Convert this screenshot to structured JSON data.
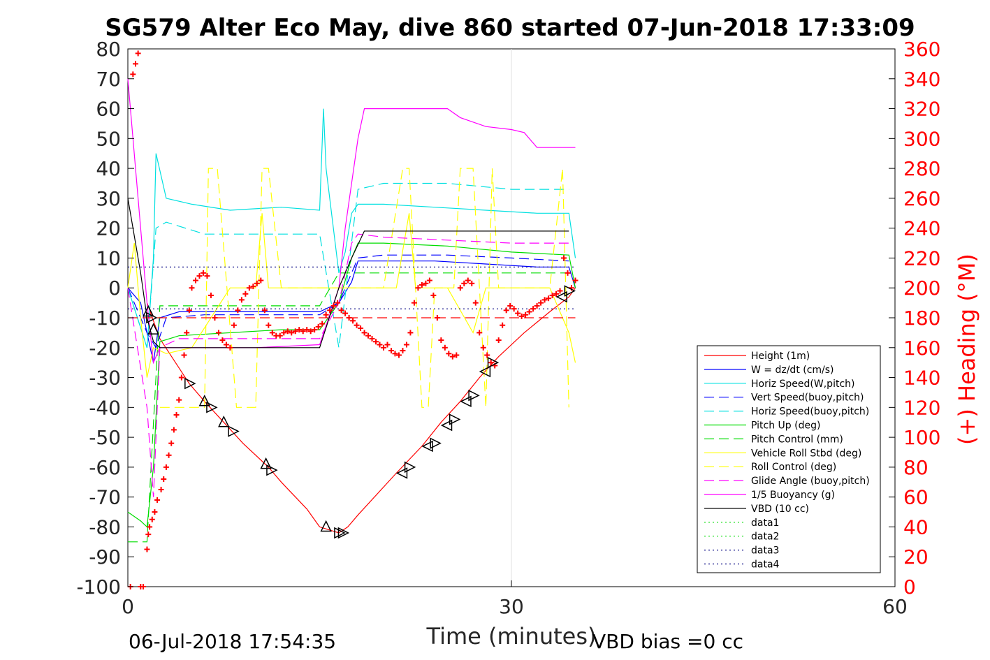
{
  "chart_data": {
    "type": "line",
    "title": "SG579 Alter Eco May, dive 860 started 07-Jun-2018 17:33:09",
    "xlabel": "Time (minutes)",
    "ylabel_right": "(+) Heading (°M)",
    "xlim": [
      0,
      60
    ],
    "ylim": [
      -100,
      80
    ],
    "ylim_right": [
      0,
      360
    ],
    "x_ticks": [
      "0",
      "30",
      "60"
    ],
    "y_ticks": [
      "80",
      "70",
      "60",
      "50",
      "40",
      "30",
      "20",
      "10",
      "0",
      "-10",
      "-20",
      "-30",
      "-40",
      "-50",
      "-60",
      "-70",
      "-80",
      "-90",
      "-100"
    ],
    "y_ticks_right": [
      "360",
      "340",
      "320",
      "300",
      "280",
      "260",
      "240",
      "220",
      "200",
      "180",
      "160",
      "140",
      "120",
      "100",
      "80",
      "60",
      "40",
      "20",
      "0"
    ],
    "grid": "x only at 30",
    "legend_position": "lower-right",
    "footer_left": "06-Jul-2018 17:54:35",
    "footer_right": "VBD bias =0 cc",
    "series": [
      {
        "name": "Height (1m)",
        "color": "#ff0000",
        "style": "solid",
        "x": [
          1.5,
          2.5,
          4.8,
          6,
          7.5,
          9,
          11,
          12,
          14,
          15,
          16.5,
          17.2,
          18,
          21,
          23,
          24.5,
          26,
          27.5,
          29,
          31,
          33,
          34.5,
          35
        ],
        "y": [
          -5,
          -17,
          -32,
          -38,
          -45,
          -52,
          -60,
          -65,
          -74,
          -80,
          -82,
          -80,
          -76,
          -62,
          -53,
          -45,
          -38,
          -30,
          -23,
          -15,
          -8,
          -3,
          0
        ]
      },
      {
        "name": "W = dz/dt (cm/s)",
        "color": "#0000ff",
        "style": "solid",
        "x": [
          0,
          1,
          1.5,
          2,
          2.5,
          4,
          8,
          12,
          15,
          16.5,
          17.5,
          18,
          20,
          24,
          28,
          32,
          34.5,
          35
        ],
        "y": [
          0,
          -5,
          -15,
          -25,
          -10,
          -8,
          -8,
          -8,
          -8,
          -5,
          2,
          9,
          9,
          9,
          8,
          7,
          7,
          0
        ]
      },
      {
        "name": "Horiz Speed(W,pitch)",
        "color": "#00e0e0",
        "style": "solid",
        "x": [
          0,
          1.5,
          2,
          2.2,
          3,
          5,
          8,
          12,
          15,
          15.3,
          15.5,
          16.5,
          17,
          17.5,
          18,
          20,
          24,
          28,
          32,
          34.5,
          35
        ],
        "y": [
          0,
          -20,
          10,
          45,
          30,
          28,
          26,
          27,
          26,
          60,
          40,
          5,
          12,
          25,
          28,
          28,
          27,
          26,
          25,
          25,
          10
        ]
      },
      {
        "name": "Vert Speed(buoy,pitch)",
        "color": "#0000ff",
        "style": "dashed",
        "x": [
          0,
          1.5,
          2.2,
          3,
          6,
          12,
          15,
          16.5,
          18,
          20,
          25,
          30,
          34.5
        ],
        "y": [
          0,
          -15,
          -20,
          -10,
          -9,
          -9,
          -9,
          -5,
          10,
          11,
          11,
          10,
          9
        ]
      },
      {
        "name": "Horiz Speed(buoy,pitch)",
        "color": "#00e0e0",
        "style": "dashed",
        "x": [
          0,
          1.5,
          2.2,
          3,
          6,
          12,
          15,
          16.5,
          18,
          20,
          25,
          30,
          34.5
        ],
        "y": [
          0,
          -20,
          20,
          22,
          18,
          18,
          18,
          -20,
          33,
          35,
          35,
          33,
          33
        ]
      },
      {
        "name": "Pitch Up (deg)",
        "color": "#00dd00",
        "style": "solid",
        "x": [
          0,
          1,
          1.5,
          2,
          2.5,
          4,
          8,
          12,
          15,
          16.5,
          17.5,
          18,
          20,
          25,
          30,
          34.5,
          35
        ],
        "y": [
          -75,
          -78,
          -80,
          -60,
          -18,
          -16,
          -15,
          -14,
          -14,
          -5,
          10,
          15,
          15,
          14,
          12,
          11,
          0
        ]
      },
      {
        "name": "Pitch Control (mm)",
        "color": "#00dd00",
        "style": "dashed",
        "x": [
          0,
          1.5,
          2.5,
          5,
          10,
          15,
          16.5,
          18,
          25,
          34.5
        ],
        "y": [
          -85,
          -85,
          -6,
          -6,
          -6,
          -6,
          5,
          5,
          5,
          5
        ]
      },
      {
        "name": "Vehicle Roll Stbd (deg)",
        "color": "#ffff00",
        "style": "solid",
        "x": [
          0,
          0.5,
          1,
          1.5,
          2,
          3,
          5,
          8,
          10,
          10.5,
          11,
          12,
          15,
          16.5,
          18,
          21,
          22,
          22.5,
          25,
          27,
          28,
          30,
          33,
          34.5,
          35
        ],
        "y": [
          0,
          15,
          -10,
          -30,
          -20,
          -22,
          -20,
          0,
          0,
          25,
          0,
          0,
          0,
          0,
          0,
          0,
          25,
          0,
          0,
          -15,
          0,
          0,
          0,
          -15,
          -25
        ]
      },
      {
        "name": "Roll Control (deg)",
        "color": "#ffff00",
        "style": "dashed",
        "x": [
          2.5,
          5,
          6,
          6.3,
          7,
          8.5,
          10,
          10.5,
          11,
          12,
          15,
          20,
          21.5,
          22,
          23,
          23.5,
          24,
          25.5,
          26,
          27,
          28,
          28.5,
          29,
          33,
          34,
          34.5
        ],
        "y": [
          -40,
          -40,
          -40,
          40,
          40,
          -40,
          -40,
          40,
          40,
          0,
          0,
          0,
          40,
          40,
          -40,
          -40,
          0,
          0,
          40,
          40,
          -40,
          40,
          0,
          0,
          40,
          -40
        ]
      },
      {
        "name": "Glide Angle (buoy,pitch)",
        "color": "#ff00ff",
        "style": "dashed",
        "x": [
          0,
          1.5,
          2,
          2.5,
          4,
          8,
          12,
          15,
          16.5,
          17.5,
          18,
          20,
          25,
          30,
          34.5
        ],
        "y": [
          0,
          -40,
          -70,
          -20,
          -17,
          -17,
          -17,
          -17,
          -5,
          15,
          18,
          17,
          16,
          15,
          15
        ]
      },
      {
        "name": "1/5 Buoyancy (g)",
        "color": "#ff00ff",
        "style": "solid",
        "x": [
          0,
          1,
          1.5,
          2,
          2.5,
          5,
          10,
          15,
          16.5,
          17,
          18,
          18.5,
          20,
          25,
          26,
          28,
          30,
          31,
          32,
          34,
          35
        ],
        "y": [
          70,
          20,
          -5,
          -25,
          -20,
          -20,
          -20,
          -19,
          0,
          20,
          50,
          60,
          60,
          60,
          57,
          54,
          53,
          52,
          47,
          47,
          47
        ]
      },
      {
        "name": "VBD (10 cc)",
        "color": "#000000",
        "style": "solid",
        "x": [
          0,
          1,
          1.5,
          2,
          2.5,
          5,
          10,
          15,
          16.5,
          17.5,
          18.5,
          20,
          25,
          30,
          34.5
        ],
        "y": [
          30,
          5,
          -10,
          -18,
          -20,
          -20,
          -20,
          -20,
          0,
          10,
          19,
          19,
          19,
          19,
          19
        ]
      },
      {
        "name": "data1",
        "color": "#00dd00",
        "style": "dotted",
        "x": [],
        "y": []
      },
      {
        "name": "data2",
        "color": "#00dd00",
        "style": "dotted",
        "x": [],
        "y": []
      },
      {
        "name": "data3",
        "color": "#000080",
        "style": "dotted",
        "x": [
          0,
          35
        ],
        "y": [
          7,
          7
        ]
      },
      {
        "name": "data4",
        "color": "#000080",
        "style": "dotted",
        "x": [
          0,
          35
        ],
        "y": [
          -7,
          -7
        ]
      }
    ],
    "reference_lines": [
      {
        "color": "#ff0000",
        "style": "dashed",
        "y": -10,
        "x": [
          0,
          35
        ]
      }
    ],
    "heading": {
      "color": "#ff0000",
      "marker": "+",
      "axis": "right",
      "x": [
        0.2,
        0.4,
        0.6,
        0.8,
        1,
        1.2,
        1.5,
        1.6,
        1.7,
        1.9,
        2.1,
        2.3,
        2.6,
        2.8,
        3,
        3.2,
        3.4,
        3.6,
        3.8,
        4,
        4.2,
        4.4,
        4.6,
        4.8,
        5,
        5.3,
        5.6,
        5.9,
        6.2,
        6.5,
        6.8,
        7.1,
        7.4,
        7.7,
        8,
        8.3,
        8.6,
        8.9,
        9.2,
        9.5,
        9.8,
        10.1,
        10.4,
        10.7,
        11,
        11.3,
        11.6,
        11.9,
        12.2,
        12.5,
        12.8,
        13.1,
        13.4,
        13.7,
        14,
        14.3,
        14.6,
        14.9,
        15.2,
        15.5,
        15.8,
        16.1,
        16.4,
        16.7,
        17,
        17.3,
        17.6,
        17.9,
        18.2,
        18.5,
        18.8,
        19.1,
        19.4,
        19.7,
        20,
        20.3,
        20.6,
        20.9,
        21.2,
        21.5,
        21.8,
        22.1,
        22.4,
        22.7,
        23,
        23.3,
        23.6,
        23.9,
        24.2,
        24.5,
        24.8,
        25.1,
        25.4,
        25.7,
        26,
        26.3,
        26.6,
        26.9,
        27.2,
        27.5,
        27.8,
        28.1,
        28.4,
        28.7,
        29,
        29.3,
        29.6,
        29.9,
        30.2,
        30.5,
        30.8,
        31.1,
        31.4,
        31.7,
        32,
        32.3,
        32.6,
        32.9,
        33.2,
        33.5,
        33.8,
        34.1,
        34.4,
        34.7,
        35
      ],
      "y": [
        0,
        343,
        350,
        357,
        0,
        0,
        25,
        35,
        40,
        45,
        50,
        58,
        65,
        72,
        80,
        88,
        96,
        105,
        115,
        125,
        140,
        155,
        170,
        185,
        200,
        205,
        208,
        210,
        208,
        195,
        180,
        170,
        165,
        162,
        160,
        175,
        185,
        192,
        196,
        200,
        201,
        203,
        205,
        185,
        175,
        170,
        168,
        168,
        170,
        171,
        170,
        171,
        172,
        171,
        172,
        171,
        172,
        174,
        176,
        182,
        185,
        188,
        190,
        185,
        183,
        180,
        178,
        175,
        173,
        170,
        168,
        166,
        164,
        162,
        160,
        162,
        158,
        156,
        155,
        158,
        162,
        170,
        190,
        200,
        202,
        203,
        205,
        195,
        180,
        165,
        160,
        156,
        154,
        155,
        200,
        203,
        205,
        203,
        190,
        170,
        160,
        155,
        150,
        148,
        165,
        175,
        185,
        188,
        186,
        183,
        181,
        182,
        184,
        186,
        188,
        190,
        192,
        193,
        195,
        196,
        198,
        220,
        210,
        200,
        205
      ]
    },
    "markers": {
      "descent": {
        "shape": "triangle",
        "x": [
          1.6,
          1.8,
          2,
          4.8,
          6,
          6.5,
          7.5,
          8.2,
          10.8,
          11.2,
          15.5,
          16.8
        ],
        "y": [
          -8,
          -10,
          -14,
          -32,
          -38,
          -40,
          -45,
          -48,
          -59,
          -61,
          -80,
          -82
        ]
      },
      "ascent": {
        "shape": "triangle",
        "x": [
          16.5,
          21.5,
          22,
          23.5,
          24,
          25,
          25.5,
          26.5,
          27,
          28,
          28.5,
          34,
          34.5
        ],
        "y": [
          -82,
          -62,
          -60,
          -53,
          -52,
          -46,
          -44,
          -38,
          -36,
          -28,
          -25,
          -3,
          -1
        ]
      }
    }
  }
}
